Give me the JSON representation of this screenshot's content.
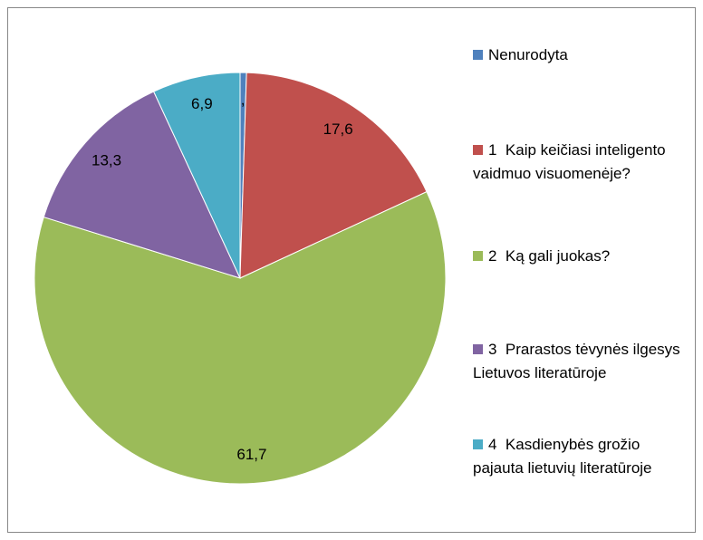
{
  "chart_data": {
    "type": "pie",
    "categories": [
      "Nenurodyta",
      "1  Kaip keičiasi inteligento vaidmuo visuomenėje?",
      "2  Ką gali juokas?",
      "3  Prarastos tėvynės ilgesys Lietuvos literatūroje",
      "4  Kasdienybės grožio pajauta lietuvių literatūroje"
    ],
    "values": [
      0.5,
      17.6,
      61.7,
      13.3,
      6.9
    ],
    "value_labels": [
      "0,5",
      "17,6",
      "61,7",
      "13,3",
      "6,9"
    ],
    "colors": [
      "#4f81bd",
      "#c0504d",
      "#9bbb59",
      "#8064a2",
      "#4bacc6"
    ],
    "legend": "right"
  }
}
